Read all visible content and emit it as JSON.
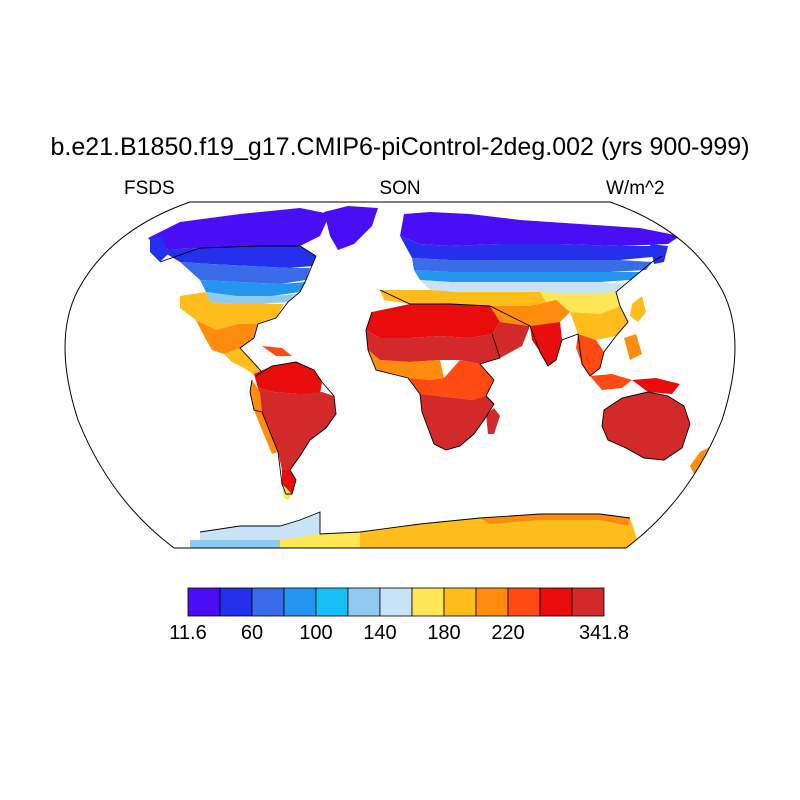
{
  "title": "b.e21.B1850.f19_g17.CMIP6-piControl-2deg.002 (yrs 900-999)",
  "left_label": "FSDS",
  "center_label": "SON",
  "right_label": "W/m^2",
  "projection": "Robinson",
  "colorbar": {
    "colors": [
      "#4a0ef5",
      "#2530ec",
      "#3a6be8",
      "#2496f0",
      "#17bff6",
      "#8ecbef",
      "#c9e3f6",
      "#fde757",
      "#ffbd1b",
      "#ff8c0d",
      "#ff4a12",
      "#e80c0c",
      "#d22a2a"
    ],
    "labels": [
      "11.6",
      "60",
      "100",
      "140",
      "180",
      "220",
      "341.8"
    ]
  },
  "field_legend": {
    "polar_ice": "#4a0ef5",
    "high_lat": "#2530ec",
    "subarctic": "#3a6be8",
    "boreal": "#2496f0",
    "cool_temperate": "#8ecbef",
    "warm_temperate": "#ffbd1b",
    "subtropics": "#ff8c0d",
    "tropics": "#d22a2a",
    "antarctica_coast": "#fde757"
  }
}
